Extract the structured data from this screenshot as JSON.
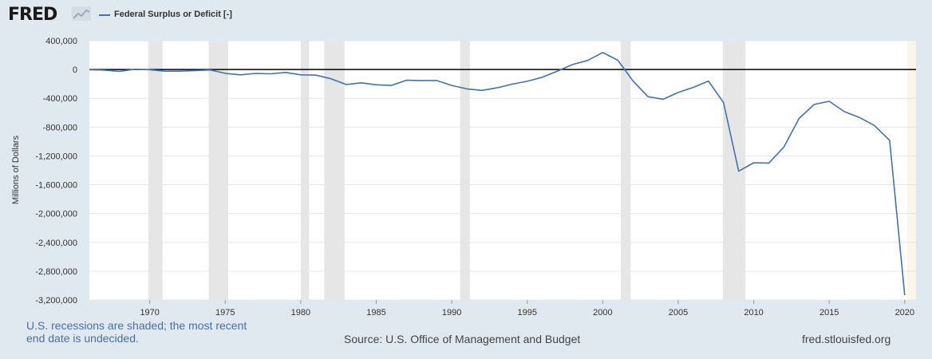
{
  "header": {
    "logo_text": "FRED",
    "legend_label": "Federal Surplus or Deficit [-]"
  },
  "footer": {
    "recession_note": "U.S. recessions are shaded; the most recent end date is undecided.",
    "source": "Source: U.S. Office of Management and Budget",
    "site": "fred.stlouisfed.org"
  },
  "colors": {
    "line": "#4572a7",
    "recession": "#e6e6e6",
    "undecided_recession": "#fbf6ec",
    "background": "#e1e9f0",
    "plot": "#ffffff"
  },
  "chart_data": {
    "type": "line",
    "ylabel": "Millions of Dollars",
    "xlabel": "",
    "xlim": [
      1966,
      2020.75
    ],
    "ylim": [
      -3200000,
      400000
    ],
    "y_ticks": [
      400000,
      0,
      -400000,
      -800000,
      -1200000,
      -1600000,
      -2000000,
      -2400000,
      -2800000,
      -3200000
    ],
    "y_tick_labels": [
      "400,000",
      "0",
      "-400,000",
      "-800,000",
      "-1,200,000",
      "-1,600,000",
      "-2,000,000",
      "-2,400,000",
      "-2,800,000",
      "-3,200,000"
    ],
    "x_ticks": [
      1970,
      1975,
      1980,
      1985,
      1990,
      1995,
      2000,
      2005,
      2010,
      2015,
      2020
    ],
    "x_tick_labels": [
      "1970",
      "1975",
      "1980",
      "1985",
      "1990",
      "1995",
      "2000",
      "2005",
      "2010",
      "2015",
      "2020"
    ],
    "zero_line": true,
    "grid": true,
    "recessions": [
      [
        1969.9,
        1970.85
      ],
      [
        1973.9,
        1975.2
      ],
      [
        1980.0,
        1980.55
      ],
      [
        1981.55,
        1982.9
      ],
      [
        1990.55,
        1991.2
      ],
      [
        2001.2,
        2001.85
      ],
      [
        2007.95,
        2009.45
      ]
    ],
    "undecided_recession": [
      2020.15,
      2020.75
    ],
    "series": [
      {
        "x": [
          1966,
          1967,
          1968,
          1969,
          1970,
          1971,
          1972,
          1973,
          1974,
          1975,
          1976,
          1977,
          1978,
          1979,
          1980,
          1981,
          1982,
          1983,
          1984,
          1985,
          1986,
          1987,
          1988,
          1989,
          1990,
          1991,
          1992,
          1993,
          1994,
          1995,
          1996,
          1997,
          1998,
          1999,
          2000,
          2001,
          2002,
          2003,
          2004,
          2005,
          2006,
          2007,
          2008,
          2009,
          2010,
          2011,
          2012,
          2013,
          2014,
          2015,
          2016,
          2017,
          2018,
          2019,
          2020
        ],
        "values": [
          -3698,
          -8643,
          -25161,
          3242,
          -2842,
          -23033,
          -23373,
          -14908,
          -6135,
          -53242,
          -73732,
          -53659,
          -59185,
          -40726,
          -73830,
          -78968,
          -127977,
          -207802,
          -185367,
          -212308,
          -221227,
          -149730,
          -155178,
          -152639,
          -221036,
          -269238,
          -290321,
          -255051,
          -203186,
          -163952,
          -107431,
          -21884,
          69270,
          125610,
          236241,
          128236,
          -157758,
          -377585,
          -412727,
          -318346,
          -248181,
          -160701,
          -458553,
          -1412688,
          -1294373,
          -1299599,
          -1076573,
          -679775,
          -484602,
          -441960,
          -584651,
          -665446,
          -779138,
          -983595,
          -3131917
        ]
      }
    ]
  }
}
